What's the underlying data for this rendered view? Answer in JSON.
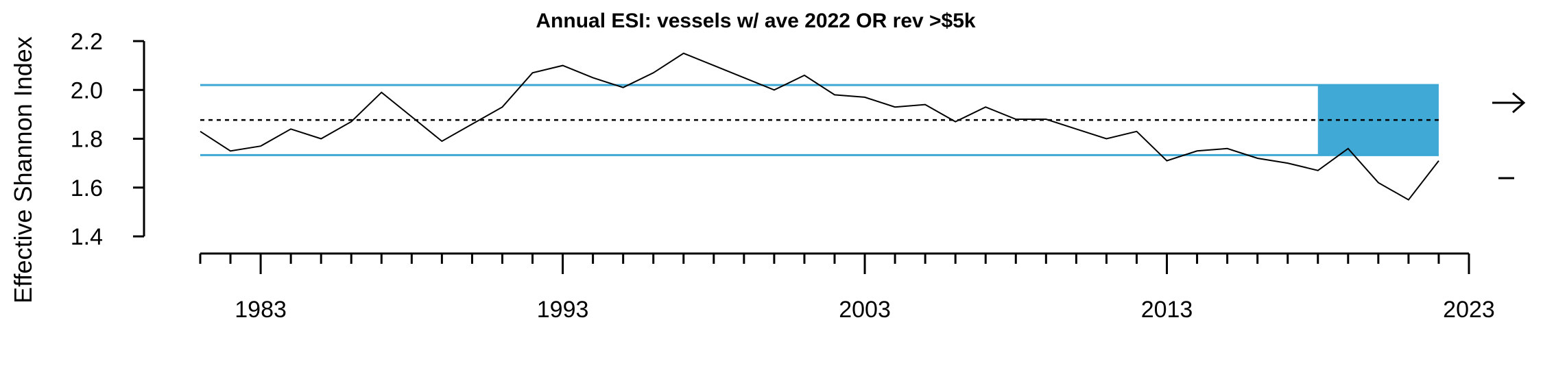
{
  "chart_data": {
    "type": "line",
    "title": "Annual ESI: vessels w/ ave 2022 OR rev >$5k",
    "xlabel": "",
    "ylabel": "Effective Shannon Index",
    "xlim": [
      1981,
      2023
    ],
    "ylim": [
      1.4,
      2.2
    ],
    "x_major_ticks": [
      1983,
      1993,
      2003,
      2013,
      2023
    ],
    "x_minor_ticks": [
      1981,
      1982,
      1983,
      1984,
      1985,
      1986,
      1987,
      1988,
      1989,
      1990,
      1991,
      1992,
      1993,
      1994,
      1995,
      1996,
      1997,
      1998,
      1999,
      2000,
      2001,
      2002,
      2003,
      2004,
      2005,
      2006,
      2007,
      2008,
      2009,
      2010,
      2011,
      2012,
      2013,
      2014,
      2015,
      2016,
      2017,
      2018,
      2019,
      2020,
      2021,
      2022,
      2023
    ],
    "y_ticks": [
      1.4,
      1.6,
      1.8,
      2.0,
      2.2
    ],
    "y_tick_labels": [
      "1.4",
      "1.6",
      "1.8",
      "2.0",
      "2.2"
    ],
    "series": [
      {
        "x": [
          1981,
          1982,
          1983,
          1984,
          1985,
          1986,
          1987,
          1988,
          1989,
          1990,
          1991,
          1992,
          1993,
          1994,
          1995,
          1996,
          1997,
          1998,
          1999,
          2000,
          2001,
          2002,
          2003,
          2004,
          2005,
          2006,
          2007,
          2008,
          2009,
          2010,
          2011,
          2012,
          2013,
          2014,
          2015,
          2016,
          2017,
          2018,
          2019,
          2020,
          2021,
          2022
        ],
        "values": [
          1.83,
          1.75,
          1.77,
          1.84,
          1.8,
          1.87,
          1.99,
          1.89,
          1.79,
          1.86,
          1.93,
          2.07,
          2.1,
          2.05,
          2.01,
          2.07,
          2.15,
          2.1,
          2.05,
          2.0,
          2.06,
          1.98,
          1.97,
          1.93,
          1.94,
          1.87,
          1.93,
          1.88,
          1.88,
          1.84,
          1.8,
          1.83,
          1.71,
          1.75,
          1.76,
          1.72,
          1.7,
          1.67,
          1.76,
          1.62,
          1.55,
          1.71
        ],
        "color": "#000000"
      }
    ],
    "mean": 1.877,
    "upper_band": 2.02,
    "lower_band": 1.733,
    "highlight_x_range": [
      2018,
      2022
    ],
    "colors": {
      "band": "#3ea8d4",
      "highlight": "#41a9d6",
      "line": "#000000"
    },
    "grid": false,
    "trend_indicators": [
      "right-arrow",
      "dash"
    ],
    "legend": "none"
  }
}
